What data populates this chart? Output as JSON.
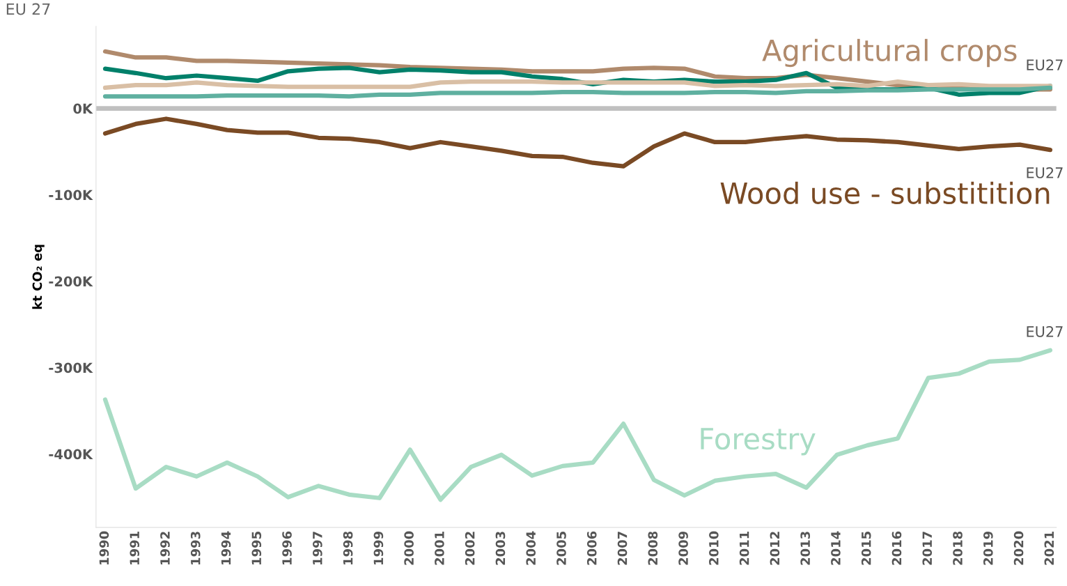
{
  "chart_data": {
    "type": "line",
    "title": "EU 27",
    "ylabel": "kt CO₂ eq",
    "categories": [
      "1990",
      "1991",
      "1992",
      "1993",
      "1994",
      "1995",
      "1996",
      "1997",
      "1998",
      "1999",
      "2000",
      "2001",
      "2002",
      "2003",
      "2004",
      "2005",
      "2006",
      "2007",
      "2008",
      "2009",
      "2010",
      "2011",
      "2012",
      "2013",
      "2014",
      "2015",
      "2016",
      "2017",
      "2018",
      "2019",
      "2020",
      "2021"
    ],
    "series": [
      {
        "name": "Agricultural crops",
        "color": "#b08a6c",
        "values": [
          66,
          59,
          59,
          55,
          55,
          54,
          53,
          52,
          51,
          50,
          48,
          47,
          46,
          45,
          43,
          43,
          43,
          46,
          47,
          46,
          37,
          35,
          35,
          39,
          35,
          31,
          27,
          26,
          25,
          22,
          22,
          22
        ]
      },
      {
        "color": "#00806a",
        "values": [
          46,
          41,
          35,
          38,
          35,
          32,
          43,
          46,
          47,
          42,
          45,
          44,
          42,
          42,
          37,
          34,
          28,
          33,
          31,
          33,
          31,
          31,
          33,
          41,
          24,
          22,
          22,
          24,
          16,
          18,
          18,
          26
        ]
      },
      {
        "color": "#d9bfa5",
        "values": [
          24,
          27,
          27,
          30,
          27,
          26,
          25,
          25,
          25,
          25,
          25,
          30,
          31,
          31,
          31,
          30,
          30,
          30,
          30,
          30,
          26,
          27,
          26,
          27,
          28,
          26,
          31,
          27,
          28,
          26,
          26,
          26
        ]
      },
      {
        "color": "#5fb0a0",
        "values": [
          14,
          14,
          14,
          14,
          15,
          15,
          15,
          15,
          14,
          16,
          16,
          18,
          18,
          18,
          18,
          19,
          19,
          18,
          18,
          18,
          19,
          19,
          18,
          20,
          20,
          21,
          21,
          22,
          22,
          22,
          22,
          24
        ]
      },
      {
        "name": "Wood use - substitition",
        "color": "#7a4a24",
        "values": [
          -29,
          -18,
          -12,
          -18,
          -25,
          -28,
          -28,
          -34,
          -35,
          -39,
          -46,
          -39,
          -44,
          -49,
          -55,
          -56,
          -63,
          -67,
          -44,
          -29,
          -39,
          -39,
          -35,
          -32,
          -36,
          -37,
          -39,
          -43,
          -47,
          -44,
          -42,
          -48
        ]
      },
      {
        "name": "Forestry",
        "color": "#a8dcc4",
        "values": [
          -337,
          -440,
          -415,
          -426,
          -410,
          -426,
          -450,
          -437,
          -447,
          -451,
          -395,
          -453,
          -415,
          -401,
          -425,
          -414,
          -410,
          -365,
          -430,
          -448,
          -431,
          -426,
          -423,
          -439,
          -401,
          -390,
          -382,
          -312,
          -307,
          -293,
          -291,
          -280
        ]
      }
    ],
    "ylim": [
      -485,
      95
    ],
    "yticks": [
      {
        "value": 0,
        "label": "0K"
      },
      {
        "value": -100,
        "label": "-100K"
      },
      {
        "value": -200,
        "label": "-200K"
      },
      {
        "value": -300,
        "label": "-300K"
      },
      {
        "value": -400,
        "label": "-400K"
      }
    ],
    "ref_lines": [
      {
        "axis": "y",
        "value": 0,
        "color": "#c0c0c0"
      }
    ],
    "annotations": [
      "EU27",
      "EU27",
      "EU27"
    ],
    "grid": false,
    "legend": false,
    "marker": "none",
    "line_style": "solid"
  }
}
